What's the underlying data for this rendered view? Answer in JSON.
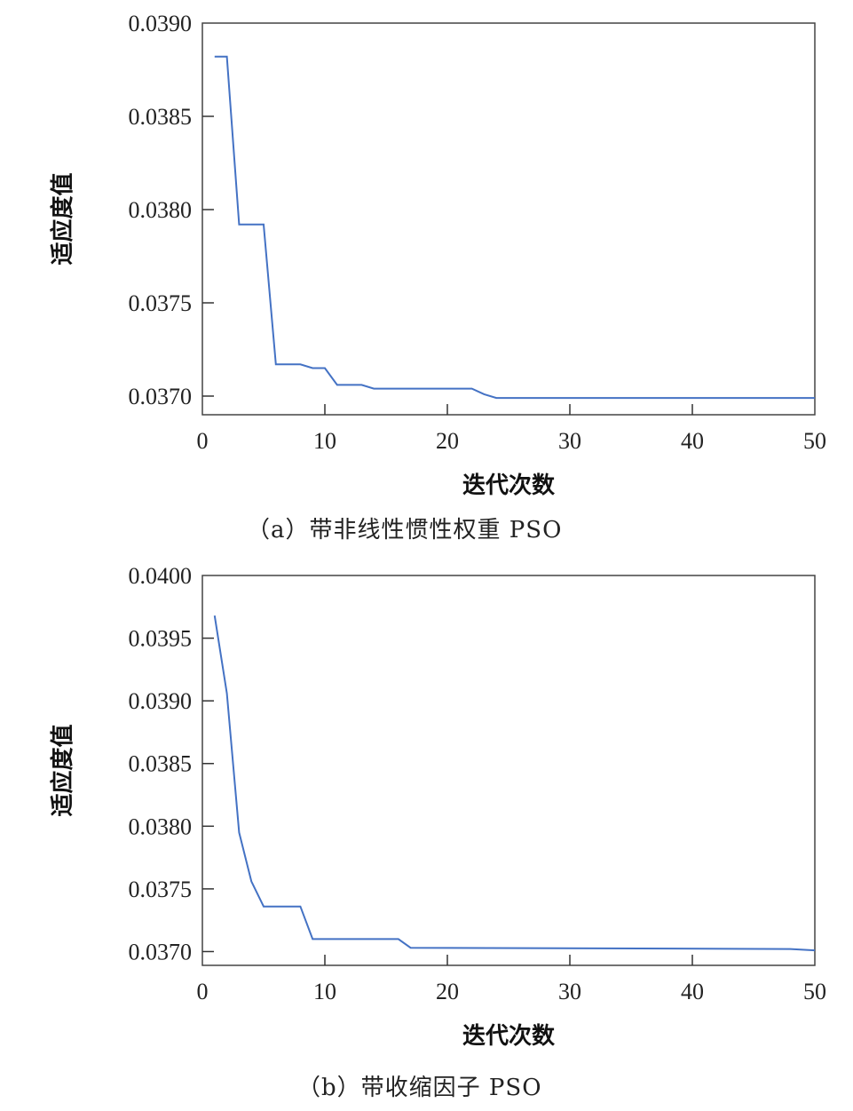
{
  "chart_data": [
    {
      "type": "line",
      "caption": "（a）带非线性惯性权重 PSO",
      "xlabel": "迭代次数",
      "ylabel": "适应度值",
      "xlim": [
        0,
        50
      ],
      "ylim": [
        0.0369,
        0.039
      ],
      "xticks": [
        0,
        10,
        20,
        30,
        40,
        50
      ],
      "yticks": [
        "0.0370",
        "0.0375",
        "0.0380",
        "0.0385",
        "0.0390"
      ],
      "grid": false,
      "color": "#4472c4",
      "x": [
        1,
        2,
        3,
        5,
        6,
        8,
        9,
        10,
        11,
        13,
        14,
        22,
        23,
        24,
        50
      ],
      "y": [
        0.03882,
        0.03882,
        0.03792,
        0.03792,
        0.03717,
        0.03717,
        0.03715,
        0.03715,
        0.03706,
        0.03706,
        0.03704,
        0.03704,
        0.03701,
        0.03699,
        0.03699
      ]
    },
    {
      "type": "line",
      "caption": "（b）带收缩因子 PSO",
      "xlabel": "迭代次数",
      "ylabel": "适应度值",
      "xlim": [
        0,
        50
      ],
      "ylim": [
        0.03689,
        0.04
      ],
      "xticks": [
        0,
        10,
        20,
        30,
        40,
        50
      ],
      "yticks": [
        "0.0370",
        "0.0375",
        "0.0380",
        "0.0385",
        "0.0390",
        "0.0395",
        "0.0400"
      ],
      "grid": false,
      "color": "#4472c4",
      "x": [
        1,
        2,
        3,
        4,
        5,
        8,
        9,
        16,
        17,
        48,
        50
      ],
      "y": [
        0.03968,
        0.03906,
        0.03795,
        0.03756,
        0.03736,
        0.03736,
        0.0371,
        0.0371,
        0.03703,
        0.03702,
        0.03701
      ]
    }
  ]
}
